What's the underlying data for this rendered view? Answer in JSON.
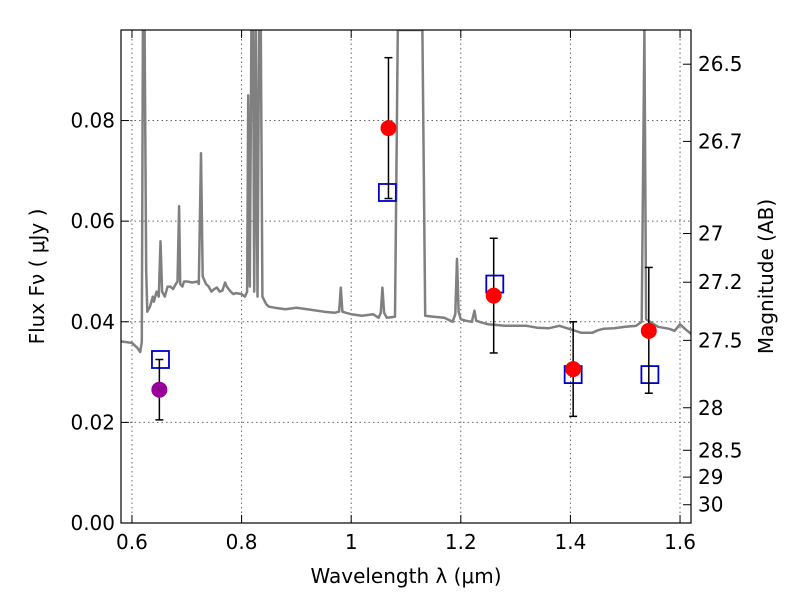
{
  "chart_data": {
    "type": "scatter",
    "xlabel": "Wavelength  λ (μm)",
    "ylabel": "Flux  Fν  ( μJy )",
    "ylabel_right": "Magnitude (AB)",
    "xlim": [
      0.58,
      1.62
    ],
    "ylim": [
      0.0,
      0.098
    ],
    "x_ticks": [
      {
        "value": 0.6,
        "label": "0.6"
      },
      {
        "value": 0.8,
        "label": "0.8"
      },
      {
        "value": 1.0,
        "label": "1"
      },
      {
        "value": 1.2,
        "label": "1.2"
      },
      {
        "value": 1.4,
        "label": "1.4"
      },
      {
        "value": 1.6,
        "label": "1.6"
      }
    ],
    "y_ticks": [
      {
        "value": 0.0,
        "label": "0.00"
      },
      {
        "value": 0.02,
        "label": "0.02"
      },
      {
        "value": 0.04,
        "label": "0.04"
      },
      {
        "value": 0.06,
        "label": "0.06"
      },
      {
        "value": 0.08,
        "label": "0.08"
      }
    ],
    "right_ticks": [
      {
        "value": 26.5,
        "label": "26.5"
      },
      {
        "value": 26.7,
        "label": "26.7"
      },
      {
        "value": 27.0,
        "label": "27"
      },
      {
        "value": 27.2,
        "label": "27.2"
      },
      {
        "value": 27.5,
        "label": "27.5"
      },
      {
        "value": 28.0,
        "label": "28"
      },
      {
        "value": 28.5,
        "label": "28.5"
      },
      {
        "value": 29.0,
        "label": "29"
      },
      {
        "value": 30.0,
        "label": "30"
      }
    ],
    "grid": true,
    "series": [
      {
        "kind": "line",
        "color": "#808080",
        "points": [
          [
            0.58,
            0.0361
          ],
          [
            0.6,
            0.0358
          ],
          [
            0.61,
            0.0348
          ],
          [
            0.615,
            0.034
          ],
          [
            0.618,
            0.036
          ],
          [
            0.62,
            0.098
          ],
          [
            0.623,
            0.098
          ],
          [
            0.626,
            0.05
          ],
          [
            0.628,
            0.042
          ],
          [
            0.633,
            0.043
          ],
          [
            0.638,
            0.045
          ],
          [
            0.64,
            0.044
          ],
          [
            0.645,
            0.046
          ],
          [
            0.649,
            0.045
          ],
          [
            0.652,
            0.056
          ],
          [
            0.655,
            0.046
          ],
          [
            0.66,
            0.045
          ],
          [
            0.665,
            0.047
          ],
          [
            0.67,
            0.047
          ],
          [
            0.675,
            0.0465
          ],
          [
            0.68,
            0.0475
          ],
          [
            0.683,
            0.048
          ],
          [
            0.686,
            0.063
          ],
          [
            0.688,
            0.0475
          ],
          [
            0.692,
            0.047
          ],
          [
            0.695,
            0.048
          ],
          [
            0.7,
            0.048
          ],
          [
            0.71,
            0.0478
          ],
          [
            0.72,
            0.048
          ],
          [
            0.722,
            0.0475
          ],
          [
            0.726,
            0.0735
          ],
          [
            0.729,
            0.049
          ],
          [
            0.735,
            0.0475
          ],
          [
            0.74,
            0.047
          ],
          [
            0.745,
            0.046
          ],
          [
            0.75,
            0.0465
          ],
          [
            0.755,
            0.0468
          ],
          [
            0.76,
            0.046
          ],
          [
            0.765,
            0.0462
          ],
          [
            0.77,
            0.0478
          ],
          [
            0.773,
            0.047
          ],
          [
            0.78,
            0.046
          ],
          [
            0.785,
            0.0455
          ],
          [
            0.79,
            0.0457
          ],
          [
            0.8,
            0.0455
          ],
          [
            0.806,
            0.045
          ],
          [
            0.81,
            0.046
          ],
          [
            0.812,
            0.085
          ],
          [
            0.815,
            0.047
          ],
          [
            0.818,
            0.098
          ],
          [
            0.821,
            0.098
          ],
          [
            0.823,
            0.046
          ],
          [
            0.826,
            0.098
          ],
          [
            0.829,
            0.045
          ],
          [
            0.832,
            0.098
          ],
          [
            0.835,
            0.098
          ],
          [
            0.838,
            0.045
          ],
          [
            0.845,
            0.0435
          ],
          [
            0.85,
            0.043
          ],
          [
            0.86,
            0.0428
          ],
          [
            0.88,
            0.0425
          ],
          [
            0.9,
            0.0428
          ],
          [
            0.92,
            0.0425
          ],
          [
            0.95,
            0.042
          ],
          [
            0.97,
            0.0418
          ],
          [
            0.978,
            0.042
          ],
          [
            0.981,
            0.0468
          ],
          [
            0.984,
            0.042
          ],
          [
            0.99,
            0.0418
          ],
          [
            1.0,
            0.0415
          ],
          [
            1.02,
            0.0412
          ],
          [
            1.04,
            0.0415
          ],
          [
            1.05,
            0.0408
          ],
          [
            1.054,
            0.0418
          ],
          [
            1.057,
            0.0468
          ],
          [
            1.06,
            0.0418
          ],
          [
            1.065,
            0.0408
          ],
          [
            1.08,
            0.041
          ],
          [
            1.085,
            0.098
          ],
          [
            1.088,
            0.098
          ],
          [
            1.13,
            0.098
          ],
          [
            1.135,
            0.0412
          ],
          [
            1.15,
            0.041
          ],
          [
            1.17,
            0.0408
          ],
          [
            1.185,
            0.04
          ],
          [
            1.19,
            0.0415
          ],
          [
            1.193,
            0.0525
          ],
          [
            1.196,
            0.042
          ],
          [
            1.2,
            0.0405
          ],
          [
            1.21,
            0.0402
          ],
          [
            1.22,
            0.04
          ],
          [
            1.225,
            0.0422
          ],
          [
            1.228,
            0.0402
          ],
          [
            1.24,
            0.0398
          ],
          [
            1.25,
            0.0395
          ],
          [
            1.28,
            0.0392
          ],
          [
            1.3,
            0.0392
          ],
          [
            1.32,
            0.0392
          ],
          [
            1.33,
            0.039
          ],
          [
            1.34,
            0.0388
          ],
          [
            1.36,
            0.0387
          ],
          [
            1.38,
            0.0392
          ],
          [
            1.4,
            0.0385
          ],
          [
            1.42,
            0.0378
          ],
          [
            1.44,
            0.0378
          ],
          [
            1.45,
            0.0383
          ],
          [
            1.46,
            0.0386
          ],
          [
            1.48,
            0.0387
          ],
          [
            1.5,
            0.039
          ],
          [
            1.52,
            0.0392
          ],
          [
            1.53,
            0.04
          ],
          [
            1.535,
            0.098
          ],
          [
            1.538,
            0.0405
          ],
          [
            1.545,
            0.04
          ],
          [
            1.56,
            0.039
          ],
          [
            1.58,
            0.0386
          ],
          [
            1.59,
            0.0382
          ],
          [
            1.6,
            0.0395
          ],
          [
            1.61,
            0.0385
          ],
          [
            1.62,
            0.0376
          ]
        ]
      },
      {
        "kind": "errorbar",
        "marker": "circle",
        "points": [
          {
            "x": 0.65,
            "y": 0.0265,
            "yerr_low": 0.0205,
            "yerr_high": 0.0325,
            "color": "#990099"
          },
          {
            "x": 1.068,
            "y": 0.0785,
            "yerr_low": 0.0645,
            "yerr_high": 0.0925,
            "color": "#ff0000"
          },
          {
            "x": 1.26,
            "y": 0.0452,
            "yerr_low": 0.0338,
            "yerr_high": 0.0566,
            "color": "#ff0000"
          },
          {
            "x": 1.405,
            "y": 0.0306,
            "yerr_low": 0.0212,
            "yerr_high": 0.04,
            "color": "#ff0000"
          },
          {
            "x": 1.543,
            "y": 0.0382,
            "yerr_low": 0.0258,
            "yerr_high": 0.0508,
            "color": "#ff0000"
          }
        ]
      },
      {
        "kind": "scatter",
        "marker": "square-open",
        "color": "#0000cc",
        "points": [
          {
            "x": 0.652,
            "y": 0.0325
          },
          {
            "x": 1.066,
            "y": 0.0657
          },
          {
            "x": 1.262,
            "y": 0.0475
          },
          {
            "x": 1.405,
            "y": 0.0295
          },
          {
            "x": 1.545,
            "y": 0.0295
          }
        ]
      }
    ]
  }
}
